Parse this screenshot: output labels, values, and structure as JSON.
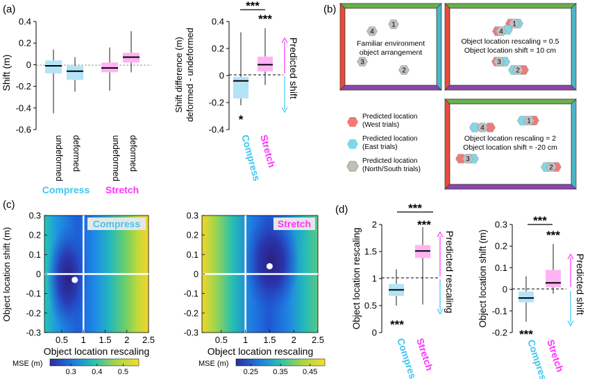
{
  "panel_labels": {
    "a": "(a)",
    "b": "(b)",
    "c": "(c)",
    "d": "(d)"
  },
  "colors": {
    "compress": "#3ec6f0",
    "compress_box": "#b3e3f6",
    "stretch": "#ff33ff",
    "stretch_box": "#ffb3f3",
    "west": "#f07a7a",
    "east": "#7fd8e6",
    "ns": "#c0c0c0",
    "wall_n": "#6ab04c",
    "wall_s": "#8e44ad",
    "wall_w": "#e74c3c",
    "wall_e": "#4bb6c8"
  },
  "legend": {
    "compress": "Compress",
    "stretch": "Stretch"
  },
  "chart_data": [
    {
      "id": "a1",
      "type": "box",
      "ylabel": "Shift (m)",
      "ylim": [
        -0.6,
        0.4
      ],
      "yticks": [
        "0.4",
        "0.2",
        "0",
        "-0.2",
        "-0.4",
        "-0.6"
      ],
      "ytick_values": [
        0.4,
        0.2,
        0,
        -0.2,
        -0.4,
        -0.6
      ],
      "categories": [
        "undeformed",
        "deformed",
        "undeformed",
        "deformed"
      ],
      "groups": [
        "Compress",
        "Compress",
        "Stretch",
        "Stretch"
      ],
      "boxes": [
        {
          "q1": -0.08,
          "median": -0.01,
          "q3": 0.04,
          "min": -0.45,
          "max": 0.14
        },
        {
          "q1": -0.14,
          "median": -0.06,
          "q3": -0.01,
          "min": -0.25,
          "max": 0.07
        },
        {
          "q1": -0.07,
          "median": -0.03,
          "q3": 0.02,
          "min": -0.24,
          "max": 0.16
        },
        {
          "q1": 0.02,
          "median": 0.07,
          "q3": 0.11,
          "min": -0.07,
          "max": 0.31
        }
      ]
    },
    {
      "id": "a2",
      "type": "box",
      "ylabel": "Shift difference (m)",
      "ylabel2": "deformed - undeformed",
      "ylim": [
        -0.4,
        0.4
      ],
      "yticks": [
        "0.4",
        "0.2",
        "0",
        "-0.2",
        "-0.4"
      ],
      "ytick_values": [
        0.4,
        0.2,
        0,
        -0.2,
        -0.4
      ],
      "categories": [
        "Compress",
        "Stretch"
      ],
      "boxes": [
        {
          "q1": -0.17,
          "median": -0.04,
          "q3": -0.01,
          "min": -0.22,
          "max": 0.32
        },
        {
          "q1": 0.03,
          "median": 0.08,
          "q3": 0.14,
          "min": -0.07,
          "max": 0.35
        }
      ],
      "annotations": {
        "bracket": "***",
        "top": "***",
        "bottom": "*",
        "arrow_label": "Predicted shift"
      }
    },
    {
      "id": "c1",
      "type": "heatmap",
      "label": "Compress",
      "xlabel": "Object location rescaling",
      "ylabel": "Object location shift (m)",
      "xlim": [
        0.1,
        2.5
      ],
      "ylim": [
        -0.3,
        0.3
      ],
      "xticks": [
        "0.5",
        "1",
        "1.5",
        "2",
        "2.5"
      ],
      "xtick_values": [
        0.5,
        1,
        1.5,
        2,
        2.5
      ],
      "yticks": [
        "0.3",
        "0.2",
        "0.1",
        "0",
        "-0.1",
        "-0.2",
        "-0.3"
      ],
      "ytick_values": [
        0.3,
        0.2,
        0.1,
        0,
        -0.1,
        -0.2,
        -0.3
      ],
      "minimum": {
        "x": 0.8,
        "y": -0.03
      },
      "colorbar": {
        "label": "MSE (m)",
        "ticks": [
          "0.3",
          "0.4",
          "0.5"
        ],
        "tick_values": [
          0.3,
          0.4,
          0.5
        ],
        "range": [
          0.22,
          0.56
        ]
      }
    },
    {
      "id": "c2",
      "type": "heatmap",
      "label": "Stretch",
      "xlabel": "Object location rescaling",
      "ylabel": "",
      "xlim": [
        0.1,
        2.5
      ],
      "ylim": [
        -0.3,
        0.3
      ],
      "xticks": [
        "0.5",
        "1",
        "1.5",
        "2",
        "2.5"
      ],
      "xtick_values": [
        0.5,
        1,
        1.5,
        2,
        2.5
      ],
      "yticks": [
        "0.3",
        "0.2",
        "0.1",
        "0",
        "-0.1",
        "-0.2",
        "-0.3"
      ],
      "ytick_values": [
        0.3,
        0.2,
        0.1,
        0,
        -0.1,
        -0.2,
        -0.3
      ],
      "minimum": {
        "x": 1.5,
        "y": 0.04
      },
      "colorbar": {
        "label": "MSE (m)",
        "ticks": [
          "0.25",
          "0.35",
          "0.45"
        ],
        "tick_values": [
          0.25,
          0.35,
          0.45
        ],
        "range": [
          0.2,
          0.5
        ]
      }
    },
    {
      "id": "d1",
      "type": "box",
      "ylabel": "Object location rescaling",
      "ylim": [
        0,
        2
      ],
      "yticks": [
        "2",
        "1.5",
        "1",
        "0.5",
        "0"
      ],
      "ytick_values": [
        2,
        1.5,
        1,
        0.5,
        0
      ],
      "categories": [
        "Compress",
        "Stretch"
      ],
      "boxes": [
        {
          "q1": 0.68,
          "median": 0.79,
          "q3": 0.9,
          "min": 0.5,
          "max": 1.17
        },
        {
          "q1": 1.38,
          "median": 1.51,
          "q3": 1.62,
          "min": 0.52,
          "max": 1.95
        }
      ],
      "annotations": {
        "bracket": "***",
        "top": "***",
        "bottom": "***",
        "arrow_label": "Predicted rescaling"
      }
    },
    {
      "id": "d2",
      "type": "box",
      "ylabel": "Object location shift (m)",
      "ylim": [
        -0.2,
        0.3
      ],
      "yticks": [
        "0.3",
        "0.2",
        "0.1",
        "0",
        "-0.1",
        "-0.2"
      ],
      "ytick_values": [
        0.3,
        0.2,
        0.1,
        0,
        -0.1,
        -0.2
      ],
      "categories": [
        "Compress",
        "Stretch"
      ],
      "boxes": [
        {
          "q1": -0.06,
          "median": -0.04,
          "q3": -0.01,
          "min": -0.15,
          "max": 0.06
        },
        {
          "q1": 0.01,
          "median": 0.03,
          "q3": 0.09,
          "min": -0.02,
          "max": 0.21
        }
      ],
      "annotations": {
        "bracket": "***",
        "top": "***",
        "bottom": "***",
        "arrow_label": "Predicted shift"
      }
    }
  ],
  "diagram": {
    "env1": {
      "text1": "Familiar environment",
      "text2": "object arrangement",
      "objects": [
        "1",
        "2",
        "3",
        "4"
      ]
    },
    "env2": {
      "text1": "Object location rescaling = 0.5",
      "text2": "Object location shift = 10 cm"
    },
    "env3": {
      "text1": "Object location rescaling = 2",
      "text2": "Object location shift = -20 cm"
    },
    "legend": [
      {
        "line1": "Predicted location",
        "line2": "(West trials)",
        "color": "#f07a7a"
      },
      {
        "line1": "Predicted location",
        "line2": "(East trials)",
        "color": "#7fd8e6"
      },
      {
        "line1": "Predicted location",
        "line2": "(North/South trials)",
        "color": "#c0c0c0"
      }
    ]
  }
}
